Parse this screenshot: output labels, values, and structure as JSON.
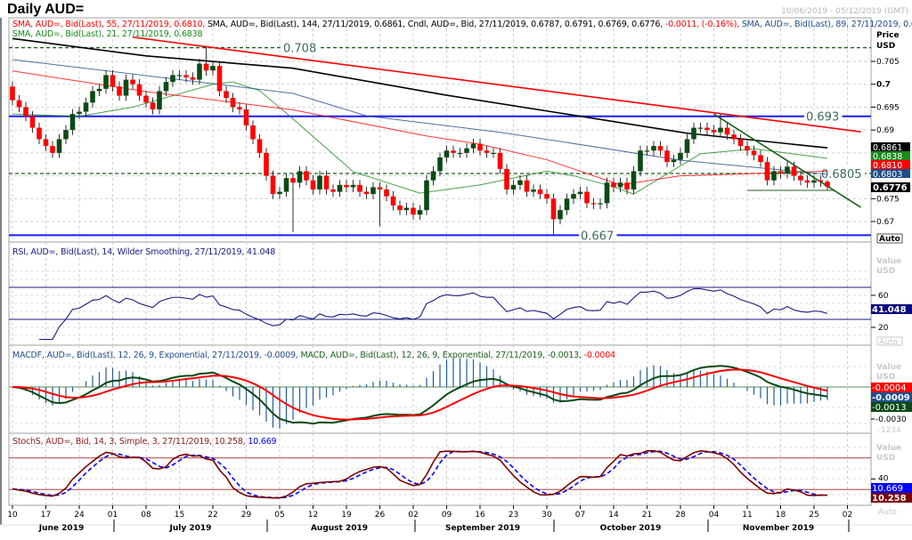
{
  "title": "Daily AUD=",
  "date_range": "10/06/2019 - 05/12/2019 (GMT)",
  "legend": {
    "price_line1": [
      {
        "text": "SMA, AUD=, Bid(Last),  55, 27/11/2019, 0.6810,",
        "color": "#ff0000"
      },
      {
        "text": " SMA, AUD=, Bid(Last),  144, 27/11/2019, 0.6861, Cndl, AUD=, Bid, 27/11/2019, 0.6787, 0.6791, 0.6769, 0.6776,",
        "color": "#000000"
      },
      {
        "text": " -0.0011, (-0.16%),",
        "color": "#ff0000"
      },
      {
        "text": " SMA, AUD=, Bid(Last),  89, 27/11/2019, 0.6803,",
        "color": "#1f4e8c"
      }
    ],
    "price_line2": [
      {
        "text": "SMA, AUD=, Bid(Last),  21, 27/11/2019, 0.6838",
        "color": "#1a8a1a"
      }
    ],
    "rsi": [
      {
        "text": "RSI, AUD=, Bid(Last),  14, Wilder Smoothing, 27/11/2019, 41.048",
        "color": "#1a1a80"
      }
    ],
    "macd": [
      {
        "text": "MACDF, AUD=, Bid(Last),  12, 26, 9, Exponential, 27/11/2019, -0.0009,",
        "color": "#1f4e8c"
      },
      {
        "text": " MACD, AUD=, Bid(Last),  12, 26, 9, Exponential, 27/11/2019, -0.0013,",
        "color": "#1a5e1a"
      },
      {
        "text": " -0.0004",
        "color": "#ff0000"
      }
    ],
    "stoch": [
      {
        "text": "StochS, AUD=, Bid,  14, 3, Simple, 3, 27/11/2019, 10.258,",
        "color": "#8b1a1a"
      },
      {
        "text": " 10.669",
        "color": "#0000ff"
      }
    ]
  },
  "axis": {
    "price_title": "Price",
    "price_unit": "USD",
    "value_title": "Value",
    "value_unit": "USD",
    "auto_label": "Auto",
    "macd_hidden_label": ".1234"
  },
  "chart_data": {
    "type": "candlestick",
    "start_date": "2019-06-10",
    "end_date": "2019-11-27",
    "x_ticks": [
      "10",
      "17",
      "24",
      "01",
      "08",
      "15",
      "22",
      "29",
      "05",
      "12",
      "19",
      "26",
      "02",
      "09",
      "16",
      "23",
      "30",
      "07",
      "14",
      "21",
      "28",
      "04",
      "11",
      "18",
      "25",
      "02"
    ],
    "months": [
      "June 2019",
      "July 2019",
      "August 2019",
      "September 2019",
      "October 2019",
      "November 2019"
    ],
    "price_ticks": [
      {
        "value": 0.705,
        "label": "0.705"
      },
      {
        "value": 0.7,
        "label": "0.7",
        "bold": true
      },
      {
        "value": 0.695,
        "label": "0.695"
      },
      {
        "value": 0.69,
        "label": "0.69"
      },
      {
        "value": 0.675,
        "label": "0.675"
      },
      {
        "value": 0.67,
        "label": "0.67"
      }
    ],
    "ylim": [
      0.6655,
      0.7135
    ],
    "closes": [
      0.6965,
      0.695,
      0.693,
      0.6905,
      0.688,
      0.6865,
      0.685,
      0.688,
      0.69,
      0.6935,
      0.694,
      0.696,
      0.6985,
      0.699,
      0.702,
      0.6995,
      0.6975,
      0.701,
      0.7,
      0.6975,
      0.696,
      0.6945,
      0.6985,
      0.7005,
      0.702,
      0.702,
      0.7015,
      0.701,
      0.7045,
      0.703,
      0.704,
      0.6985,
      0.697,
      0.695,
      0.6945,
      0.691,
      0.688,
      0.685,
      0.68,
      0.676,
      0.6765,
      0.6795,
      0.6785,
      0.681,
      0.679,
      0.677,
      0.68,
      0.677,
      0.6765,
      0.678,
      0.6775,
      0.678,
      0.6765,
      0.676,
      0.6775,
      0.677,
      0.6755,
      0.6735,
      0.6725,
      0.673,
      0.6715,
      0.6725,
      0.679,
      0.681,
      0.684,
      0.6855,
      0.685,
      0.685,
      0.686,
      0.687,
      0.6855,
      0.685,
      0.685,
      0.6815,
      0.677,
      0.678,
      0.679,
      0.6765,
      0.677,
      0.676,
      0.675,
      0.6705,
      0.6725,
      0.675,
      0.676,
      0.6765,
      0.674,
      0.6738,
      0.674,
      0.6785,
      0.6775,
      0.6785,
      0.677,
      0.681,
      0.6855,
      0.6855,
      0.6865,
      0.6855,
      0.683,
      0.6835,
      0.685,
      0.688,
      0.6905,
      0.6905,
      0.69,
      0.6895,
      0.6905,
      0.689,
      0.688,
      0.6865,
      0.6855,
      0.6845,
      0.683,
      0.679,
      0.681,
      0.6805,
      0.682,
      0.68,
      0.679,
      0.6785,
      0.679,
      0.6787,
      0.6776
    ],
    "last_candle": {
      "date": "2019-11-27",
      "open": 0.6787,
      "high": 0.6791,
      "low": 0.6769,
      "close": 0.6776,
      "change": -0.0011,
      "change_pct": -0.16
    },
    "wick_extremes": [
      {
        "date": "2019-07-19",
        "high": 0.7082
      },
      {
        "date": "2019-08-07",
        "low": 0.6677
      },
      {
        "date": "2019-08-26",
        "low": 0.669
      },
      {
        "date": "2019-10-01",
        "low": 0.667
      },
      {
        "date": "2019-11-05",
        "high": 0.6935
      }
    ],
    "colors": {
      "up": "#0a4a14",
      "down": "#ff0000"
    },
    "series": [
      {
        "name": "SMA 144",
        "color": "#000000",
        "last": "0.6861",
        "points": [
          [
            "2019-06-10",
            0.71
          ],
          [
            "2019-07-08",
            0.7062
          ],
          [
            "2019-08-07",
            0.7035
          ],
          [
            "2019-09-09",
            0.6976
          ],
          [
            "2019-10-02",
            0.6937
          ],
          [
            "2019-10-29",
            0.6893
          ],
          [
            "2019-11-27",
            0.6861
          ]
        ]
      },
      {
        "name": "SMA 21",
        "color": "#1a8a1a",
        "last": "0.6838",
        "points": [
          [
            "2019-06-10",
            0.6935
          ],
          [
            "2019-06-24",
            0.693
          ],
          [
            "2019-07-04",
            0.695
          ],
          [
            "2019-07-22",
            0.7
          ],
          [
            "2019-07-25",
            0.7005
          ],
          [
            "2019-07-31",
            0.6986
          ],
          [
            "2019-08-06",
            0.6937
          ],
          [
            "2019-08-20",
            0.6809
          ],
          [
            "2019-09-03",
            0.6762
          ],
          [
            "2019-09-16",
            0.678
          ],
          [
            "2019-09-30",
            0.681
          ],
          [
            "2019-10-04",
            0.68
          ],
          [
            "2019-10-14",
            0.6776
          ],
          [
            "2019-10-17",
            0.676
          ],
          [
            "2019-10-31",
            0.6848
          ],
          [
            "2019-11-12",
            0.6859
          ],
          [
            "2019-11-27",
            0.6838
          ]
        ]
      },
      {
        "name": "SMA 55",
        "color": "#ff0000",
        "last": "0.6810",
        "points": [
          [
            "2019-06-10",
            0.7029
          ],
          [
            "2019-07-08",
            0.6984
          ],
          [
            "2019-08-07",
            0.6944
          ],
          [
            "2019-09-04",
            0.6887
          ],
          [
            "2019-09-16",
            0.6869
          ],
          [
            "2019-09-30",
            0.6835
          ],
          [
            "2019-10-15",
            0.678
          ],
          [
            "2019-10-28",
            0.68
          ],
          [
            "2019-11-27",
            0.681
          ]
        ]
      },
      {
        "name": "SMA 89",
        "color": "#1f4e8c",
        "last": "0.6803",
        "points": [
          [
            "2019-06-10",
            0.7054
          ],
          [
            "2019-07-08",
            0.7019
          ],
          [
            "2019-08-07",
            0.698
          ],
          [
            "2019-08-22",
            0.6931
          ],
          [
            "2019-09-19",
            0.6895
          ],
          [
            "2019-10-02",
            0.6875
          ],
          [
            "2019-10-28",
            0.6834
          ],
          [
            "2019-11-27",
            0.6803
          ]
        ]
      }
    ],
    "current_price_label": "0.6776",
    "levels": [
      {
        "value": 0.708,
        "label": "0.708",
        "style": "dashed",
        "color": "#1a5e1a"
      },
      {
        "value": 0.693,
        "label": "0.693",
        "style": "solid",
        "color": "#1a1aff"
      },
      {
        "value": 0.6805,
        "label": "0.6805",
        "style": "dashed",
        "color": "#1a5e1a"
      },
      {
        "value": 0.667,
        "label": "0.667",
        "style": "solid",
        "color": "#1a1aff"
      }
    ],
    "support_segment": {
      "from": "2019-11-11",
      "to": "2019-11-28",
      "value": 0.6768,
      "color": "#8fb08f"
    },
    "trendlines": [
      {
        "color": "#ff0000",
        "from": [
          "2019-07-04",
          0.7103
        ],
        "to": [
          "2019-12-04",
          0.6896
        ]
      },
      {
        "color": "#1a5e1a",
        "from": [
          "2019-11-04",
          0.6935
        ],
        "to": [
          "2019-12-04",
          0.6731
        ]
      }
    ],
    "rsi": {
      "period": 14,
      "levels": [
        70,
        30
      ],
      "ticks": [
        "60",
        "20"
      ],
      "tick_values": [
        60,
        20
      ],
      "last_label": "41.048",
      "color": "#1a1a80",
      "ylim": [
        0,
        100
      ]
    },
    "macd": {
      "fast": 12,
      "slow": 26,
      "signal": 9,
      "labels": [
        {
          "text": "-0.0004",
          "color": "#ff0000"
        },
        {
          "text": "-0.0009",
          "color": "#1f4e8c"
        },
        {
          "text": "-0.0013",
          "color": "#0a4a14"
        }
      ],
      "tick_label": "-0.0030",
      "macd_color": "#0a4a14",
      "signal_color": "#ff0000",
      "hist_color": "#1f5c9c",
      "zero_color": "#8fb08f"
    },
    "stoch": {
      "k": 14,
      "smooth": 3,
      "d": 3,
      "levels": [
        80,
        20
      ],
      "ticks": [
        "40"
      ],
      "tick_values": [
        40
      ],
      "labels": [
        {
          "text": "10.669",
          "color": "#0000ff"
        },
        {
          "text": "10.258",
          "color": "#7a0000"
        }
      ],
      "k_color": "#7a0000",
      "d_color": "#0000ff",
      "ylim": [
        0,
        100
      ]
    }
  }
}
